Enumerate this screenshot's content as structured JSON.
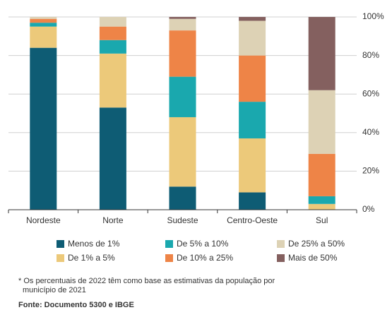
{
  "chart_data": {
    "type": "stacked_bar",
    "categories": [
      "Nordeste",
      "Norte",
      "Sudeste",
      "Centro-Oeste",
      "Sul"
    ],
    "series": [
      {
        "name": "Menos de 1%",
        "color": "#0e5c74",
        "values": [
          84,
          53,
          12,
          9,
          0
        ]
      },
      {
        "name": "De 1% a 5%",
        "color": "#ecc97a",
        "values": [
          11,
          28,
          36,
          28,
          3
        ]
      },
      {
        "name": "De 5% a 10%",
        "color": "#1aa8ae",
        "values": [
          2,
          7,
          21,
          19,
          4
        ]
      },
      {
        "name": "De 10% a 25%",
        "color": "#ee8447",
        "values": [
          2,
          7,
          24,
          24,
          22
        ]
      },
      {
        "name": "De 25% a 50%",
        "color": "#ddd2b5",
        "values": [
          1,
          5,
          6,
          18,
          33
        ]
      },
      {
        "name": "Mais de 50%",
        "color": "#84605f",
        "values": [
          0,
          0,
          1,
          2,
          38
        ]
      }
    ],
    "ylim": [
      0,
      100
    ],
    "yticks": [
      {
        "value": 0,
        "label": "0%"
      },
      {
        "value": 20,
        "label": "20%"
      },
      {
        "value": 40,
        "label": "40%"
      },
      {
        "value": 60,
        "label": "60%"
      },
      {
        "value": 80,
        "label": "80%"
      },
      {
        "value": 100,
        "label": "100%"
      }
    ],
    "grid": true,
    "footnote": [
      "* Os percentuais de 2022 têm como base as estimativas da população por",
      "município de 2021"
    ],
    "source": "Fonte: Documento 5300 e IBGE"
  }
}
